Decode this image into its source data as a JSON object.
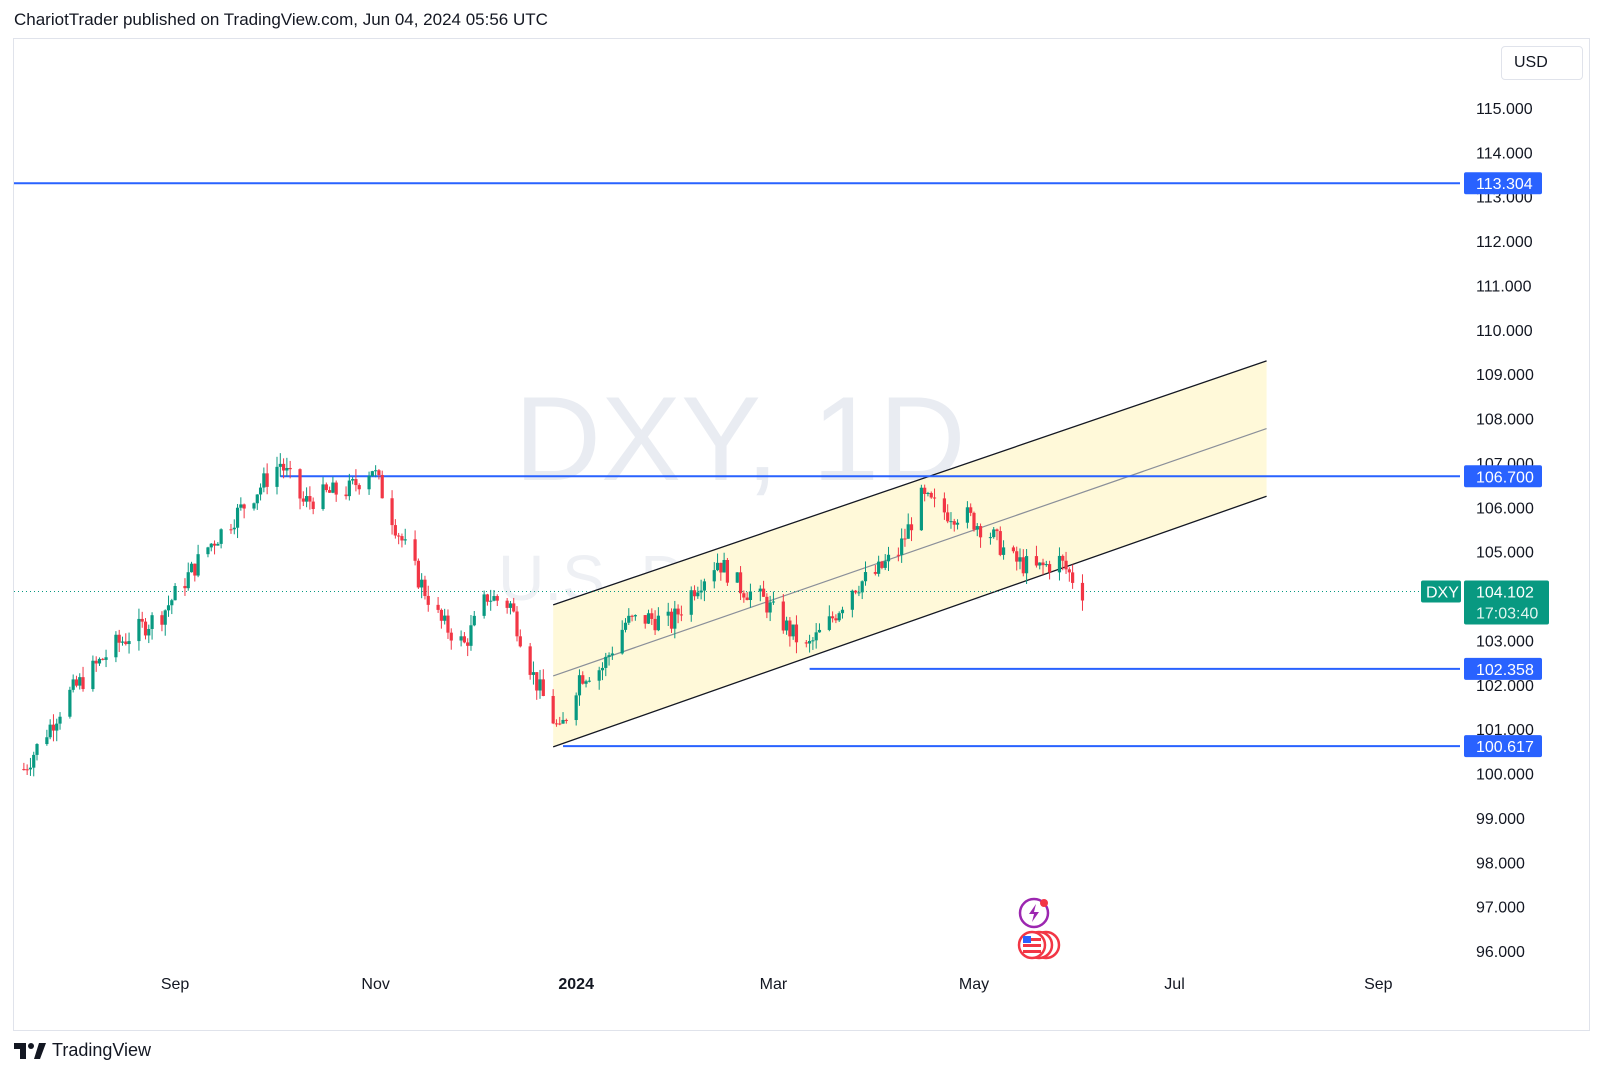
{
  "header": {
    "published": "ChariotTrader published on TradingView.com, Jun 04, 2024 05:56 UTC"
  },
  "footer": {
    "brand": "TradingView"
  },
  "currency": "USD",
  "colors": {
    "up": "#089981",
    "down": "#f23645",
    "level": "#2962ff",
    "channel_fill": "#fff9d9",
    "grid_text": "#131722"
  },
  "chart_data": {
    "type": "candlestick",
    "symbol": "DXY",
    "interval": "1D",
    "watermark": {
      "line1": "DXY, 1D",
      "line2": "U.S. Dollar Index"
    },
    "ylim": [
      95.6,
      117.2
    ],
    "y_ticks": [
      "115.000",
      "114.000",
      "113.000",
      "112.000",
      "111.000",
      "110.000",
      "109.000",
      "108.000",
      "107.000",
      "106.000",
      "105.000",
      "103.000",
      "102.000",
      "101.000",
      "100.000",
      "99.000",
      "98.000",
      "97.000",
      "96.000"
    ],
    "x_ticks": [
      {
        "label": "Sep",
        "date": "2023-09-01",
        "bold": false
      },
      {
        "label": "Nov",
        "date": "2023-11-01",
        "bold": false
      },
      {
        "label": "2024",
        "date": "2024-01-01",
        "bold": true
      },
      {
        "label": "Mar",
        "date": "2024-03-01",
        "bold": false
      },
      {
        "label": "May",
        "date": "2024-05-01",
        "bold": false
      },
      {
        "label": "Jul",
        "date": "2024-07-01",
        "bold": false
      },
      {
        "label": "Sep",
        "date": "2024-09-01",
        "bold": false
      }
    ],
    "horizontal_levels": [
      {
        "price": 113.304,
        "label": "113.304",
        "from": "2023-07-05",
        "to": "2024-10-06"
      },
      {
        "price": 106.7,
        "label": "106.700",
        "from": "2023-10-03",
        "to": "2024-10-06"
      },
      {
        "price": 102.358,
        "label": "102.358",
        "from": "2024-03-12",
        "to": "2024-10-06"
      },
      {
        "price": 100.617,
        "label": "100.617",
        "from": "2023-12-28",
        "to": "2024-10-06"
      }
    ],
    "channel": {
      "start": "2023-12-25",
      "end": "2024-07-29",
      "lower_start": 100.6,
      "lower_end": 106.25,
      "upper_start": 103.8,
      "upper_end": 109.3
    },
    "current": {
      "symbol": "DXY",
      "price": "104.102",
      "countdown": "17:03:40",
      "value": 104.102
    },
    "close_series": [
      {
        "date": "2023-07-17",
        "close": 100.1
      },
      {
        "date": "2023-07-31",
        "close": 101.8
      },
      {
        "date": "2023-08-14",
        "close": 102.9
      },
      {
        "date": "2023-08-28",
        "close": 103.6
      },
      {
        "date": "2023-09-11",
        "close": 105.1
      },
      {
        "date": "2023-09-25",
        "close": 106.3
      },
      {
        "date": "2023-10-03",
        "close": 107.0
      },
      {
        "date": "2023-10-10",
        "close": 106.1
      },
      {
        "date": "2023-10-17",
        "close": 106.3
      },
      {
        "date": "2023-10-24",
        "close": 106.4
      },
      {
        "date": "2023-10-31",
        "close": 106.9
      },
      {
        "date": "2023-11-07",
        "close": 105.6
      },
      {
        "date": "2023-11-14",
        "close": 104.4
      },
      {
        "date": "2023-11-21",
        "close": 103.4
      },
      {
        "date": "2023-11-28",
        "close": 102.9
      },
      {
        "date": "2023-12-05",
        "close": 104.0
      },
      {
        "date": "2023-12-12",
        "close": 103.8
      },
      {
        "date": "2023-12-19",
        "close": 102.2
      },
      {
        "date": "2023-12-27",
        "close": 100.9
      },
      {
        "date": "2024-01-02",
        "close": 102.2
      },
      {
        "date": "2024-01-09",
        "close": 102.4
      },
      {
        "date": "2024-01-16",
        "close": 103.4
      },
      {
        "date": "2024-01-23",
        "close": 103.5
      },
      {
        "date": "2024-01-30",
        "close": 103.4
      },
      {
        "date": "2024-02-06",
        "close": 104.2
      },
      {
        "date": "2024-02-13",
        "close": 104.8
      },
      {
        "date": "2024-02-20",
        "close": 104.2
      },
      {
        "date": "2024-02-27",
        "close": 103.9
      },
      {
        "date": "2024-03-05",
        "close": 103.3
      },
      {
        "date": "2024-03-11",
        "close": 102.8
      },
      {
        "date": "2024-03-18",
        "close": 103.4
      },
      {
        "date": "2024-03-25",
        "close": 104.2
      },
      {
        "date": "2024-04-01",
        "close": 104.5
      },
      {
        "date": "2024-04-08",
        "close": 105.0
      },
      {
        "date": "2024-04-15",
        "close": 106.2
      },
      {
        "date": "2024-04-22",
        "close": 105.9
      },
      {
        "date": "2024-04-29",
        "close": 105.8
      },
      {
        "date": "2024-05-06",
        "close": 105.4
      },
      {
        "date": "2024-05-13",
        "close": 104.8
      },
      {
        "date": "2024-05-20",
        "close": 104.6
      },
      {
        "date": "2024-05-27",
        "close": 104.8
      },
      {
        "date": "2024-06-03",
        "close": 104.1
      }
    ]
  }
}
